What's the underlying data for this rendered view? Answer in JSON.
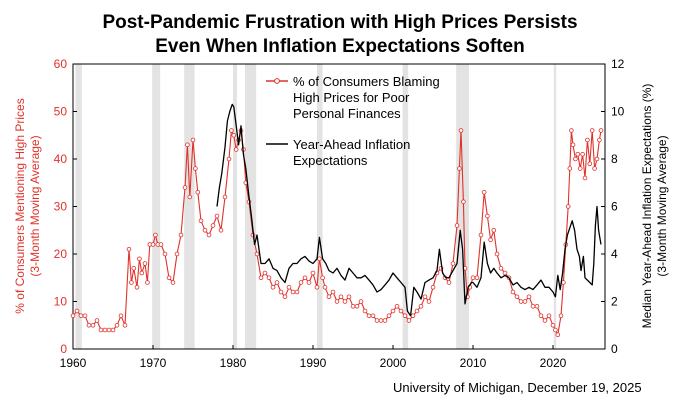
{
  "chart_data": {
    "type": "line",
    "title": "Post-Pandemic Frustration with High Prices Persists",
    "subtitle": "Even When Inflation Expectations Soften",
    "source": "University of Michigan, December 19, 2025",
    "x_ticks": [
      "1960",
      "1970",
      "1980",
      "1990",
      "2000",
      "2010",
      "2020"
    ],
    "xlim": [
      1960,
      2026.5
    ],
    "y_left": {
      "label_line1": "% of Consumers Mentioning High Prices",
      "label_line2": "(3-Month Moving Average)",
      "lim": [
        0,
        60
      ],
      "ticks": [
        "0",
        "10",
        "20",
        "30",
        "40",
        "50",
        "60"
      ]
    },
    "y_right": {
      "label_line1": "Median Year-Ahead Inflation Expectations (%)",
      "label_line2": "(3-Month Moving Average)",
      "lim": [
        0,
        12
      ],
      "ticks": [
        "0",
        "2",
        "4",
        "6",
        "8",
        "10",
        "12"
      ]
    },
    "recessions": [
      [
        1960.3,
        1961.1
      ],
      [
        1969.9,
        1970.9
      ],
      [
        1973.9,
        1975.2
      ],
      [
        1980.0,
        1980.5
      ],
      [
        1981.5,
        1982.9
      ],
      [
        1990.5,
        1991.2
      ],
      [
        2001.2,
        2001.9
      ],
      [
        2007.9,
        2009.5
      ],
      [
        2020.1,
        2020.4
      ]
    ],
    "series": [
      {
        "name": "% of Consumers Blaming High Prices for Poor Personal Finances",
        "legend_lines": [
          "% of Consumers Blaming",
          "High Prices for Poor",
          "Personal Finances"
        ],
        "axis": "left",
        "color": "#e0322b",
        "points": [
          [
            1960.0,
            7
          ],
          [
            1960.5,
            8
          ],
          [
            1961.0,
            7
          ],
          [
            1961.5,
            7
          ],
          [
            1962.0,
            5
          ],
          [
            1962.5,
            5
          ],
          [
            1963.0,
            6
          ],
          [
            1963.5,
            4
          ],
          [
            1964.0,
            4
          ],
          [
            1964.5,
            4
          ],
          [
            1965.0,
            4
          ],
          [
            1965.5,
            5
          ],
          [
            1966.0,
            7
          ],
          [
            1966.5,
            5
          ],
          [
            1967.0,
            21
          ],
          [
            1967.3,
            14
          ],
          [
            1967.6,
            17
          ],
          [
            1968.0,
            13
          ],
          [
            1968.3,
            19
          ],
          [
            1968.6,
            16
          ],
          [
            1969.0,
            18
          ],
          [
            1969.3,
            14
          ],
          [
            1969.6,
            22
          ],
          [
            1970.0,
            22
          ],
          [
            1970.3,
            24
          ],
          [
            1970.6,
            22
          ],
          [
            1971.0,
            22
          ],
          [
            1971.5,
            20
          ],
          [
            1972.0,
            15
          ],
          [
            1972.5,
            14
          ],
          [
            1973.0,
            20
          ],
          [
            1973.5,
            24
          ],
          [
            1974.0,
            34
          ],
          [
            1974.3,
            43
          ],
          [
            1974.6,
            32
          ],
          [
            1975.0,
            44
          ],
          [
            1975.3,
            38
          ],
          [
            1975.6,
            33
          ],
          [
            1976.0,
            27
          ],
          [
            1976.5,
            25
          ],
          [
            1977.0,
            24
          ],
          [
            1977.5,
            26
          ],
          [
            1978.0,
            28
          ],
          [
            1978.5,
            25
          ],
          [
            1979.0,
            32
          ],
          [
            1979.5,
            40
          ],
          [
            1979.8,
            46
          ],
          [
            1980.1,
            45
          ],
          [
            1980.4,
            42
          ],
          [
            1980.7,
            44
          ],
          [
            1981.0,
            46
          ],
          [
            1981.3,
            42
          ],
          [
            1981.6,
            35
          ],
          [
            1982.0,
            31
          ],
          [
            1982.5,
            24
          ],
          [
            1983.0,
            20
          ],
          [
            1983.5,
            15
          ],
          [
            1984.0,
            16
          ],
          [
            1984.5,
            15
          ],
          [
            1985.0,
            13
          ],
          [
            1985.5,
            14
          ],
          [
            1986.0,
            12
          ],
          [
            1986.5,
            11
          ],
          [
            1987.0,
            13
          ],
          [
            1987.5,
            12
          ],
          [
            1988.0,
            12
          ],
          [
            1988.5,
            14
          ],
          [
            1989.0,
            15
          ],
          [
            1989.5,
            14
          ],
          [
            1990.0,
            16
          ],
          [
            1990.5,
            13
          ],
          [
            1990.8,
            19
          ],
          [
            1991.2,
            15
          ],
          [
            1991.5,
            13
          ],
          [
            1992.0,
            11
          ],
          [
            1992.5,
            12
          ],
          [
            1993.0,
            10
          ],
          [
            1993.5,
            11
          ],
          [
            1994.0,
            10
          ],
          [
            1994.5,
            11
          ],
          [
            1995.0,
            9
          ],
          [
            1995.5,
            9
          ],
          [
            1996.0,
            10
          ],
          [
            1996.5,
            8
          ],
          [
            1997.0,
            7
          ],
          [
            1997.5,
            7
          ],
          [
            1998.0,
            6
          ],
          [
            1998.5,
            6
          ],
          [
            1999.0,
            6
          ],
          [
            1999.5,
            7
          ],
          [
            2000.0,
            8
          ],
          [
            2000.5,
            9
          ],
          [
            2001.0,
            8
          ],
          [
            2001.5,
            7
          ],
          [
            2002.0,
            6
          ],
          [
            2002.5,
            7
          ],
          [
            2003.0,
            8
          ],
          [
            2003.5,
            9
          ],
          [
            2004.0,
            11
          ],
          [
            2004.5,
            10
          ],
          [
            2005.0,
            13
          ],
          [
            2005.5,
            16
          ],
          [
            2006.0,
            17
          ],
          [
            2006.5,
            15
          ],
          [
            2007.0,
            14
          ],
          [
            2007.5,
            18
          ],
          [
            2008.0,
            26
          ],
          [
            2008.3,
            38
          ],
          [
            2008.5,
            46
          ],
          [
            2008.8,
            31
          ],
          [
            2009.0,
            17
          ],
          [
            2009.3,
            11
          ],
          [
            2009.6,
            13
          ],
          [
            2010.0,
            15
          ],
          [
            2010.5,
            15
          ],
          [
            2011.0,
            24
          ],
          [
            2011.4,
            33
          ],
          [
            2011.8,
            28
          ],
          [
            2012.2,
            23
          ],
          [
            2012.6,
            25
          ],
          [
            2013.0,
            20
          ],
          [
            2013.5,
            17
          ],
          [
            2014.0,
            16
          ],
          [
            2014.5,
            15
          ],
          [
            2015.0,
            12
          ],
          [
            2015.5,
            11
          ],
          [
            2016.0,
            10
          ],
          [
            2016.5,
            10
          ],
          [
            2017.0,
            11
          ],
          [
            2017.5,
            9
          ],
          [
            2018.0,
            9
          ],
          [
            2018.5,
            7
          ],
          [
            2019.0,
            6
          ],
          [
            2019.5,
            7
          ],
          [
            2020.0,
            5
          ],
          [
            2020.3,
            4
          ],
          [
            2020.6,
            3
          ],
          [
            2021.0,
            7
          ],
          [
            2021.3,
            14
          ],
          [
            2021.6,
            22
          ],
          [
            2021.9,
            30
          ],
          [
            2022.1,
            38
          ],
          [
            2022.3,
            46
          ],
          [
            2022.5,
            43
          ],
          [
            2022.8,
            40
          ],
          [
            2023.1,
            41
          ],
          [
            2023.4,
            38
          ],
          [
            2023.7,
            41
          ],
          [
            2024.0,
            36
          ],
          [
            2024.3,
            44
          ],
          [
            2024.6,
            39
          ],
          [
            2024.9,
            46
          ],
          [
            2025.2,
            38
          ],
          [
            2025.5,
            40
          ],
          [
            2025.8,
            44
          ],
          [
            2026.0,
            46
          ]
        ]
      },
      {
        "name": "Year-Ahead Inflation Expectations",
        "legend_lines": [
          "Year-Ahead Inflation",
          "Expectations"
        ],
        "axis": "right",
        "color": "#000000",
        "points": [
          [
            1978.0,
            6.0
          ],
          [
            1978.3,
            6.8
          ],
          [
            1978.6,
            7.4
          ],
          [
            1979.0,
            8.5
          ],
          [
            1979.3,
            9.6
          ],
          [
            1979.6,
            10.0
          ],
          [
            1979.9,
            10.3
          ],
          [
            1980.1,
            10.2
          ],
          [
            1980.4,
            9.4
          ],
          [
            1980.7,
            8.6
          ],
          [
            1981.0,
            9.4
          ],
          [
            1981.3,
            8.2
          ],
          [
            1981.6,
            7.6
          ],
          [
            1982.0,
            6.4
          ],
          [
            1982.3,
            5.6
          ],
          [
            1982.7,
            4.4
          ],
          [
            1983.0,
            4.8
          ],
          [
            1983.5,
            3.6
          ],
          [
            1984.0,
            3.6
          ],
          [
            1984.5,
            3.8
          ],
          [
            1985.0,
            3.4
          ],
          [
            1985.5,
            3.3
          ],
          [
            1986.0,
            3.0
          ],
          [
            1986.5,
            2.8
          ],
          [
            1987.0,
            3.4
          ],
          [
            1987.5,
            3.6
          ],
          [
            1988.0,
            3.6
          ],
          [
            1988.5,
            3.8
          ],
          [
            1989.0,
            3.9
          ],
          [
            1989.5,
            3.7
          ],
          [
            1990.0,
            3.6
          ],
          [
            1990.5,
            3.8
          ],
          [
            1990.8,
            4.7
          ],
          [
            1991.2,
            3.8
          ],
          [
            1991.6,
            3.6
          ],
          [
            1992.0,
            3.3
          ],
          [
            1992.5,
            3.2
          ],
          [
            1993.0,
            3.4
          ],
          [
            1993.5,
            3.1
          ],
          [
            1994.0,
            2.9
          ],
          [
            1994.5,
            3.4
          ],
          [
            1995.0,
            3.2
          ],
          [
            1995.5,
            3.0
          ],
          [
            1996.0,
            3.0
          ],
          [
            1996.5,
            3.1
          ],
          [
            1997.0,
            2.9
          ],
          [
            1997.5,
            2.7
          ],
          [
            1998.0,
            2.4
          ],
          [
            1998.5,
            2.5
          ],
          [
            1999.0,
            2.7
          ],
          [
            1999.5,
            2.9
          ],
          [
            2000.0,
            3.2
          ],
          [
            2000.5,
            3.0
          ],
          [
            2001.0,
            2.8
          ],
          [
            2001.5,
            2.6
          ],
          [
            2001.8,
            1.6
          ],
          [
            2002.2,
            1.4
          ],
          [
            2002.6,
            2.6
          ],
          [
            2003.0,
            2.4
          ],
          [
            2003.5,
            2.1
          ],
          [
            2004.0,
            2.8
          ],
          [
            2004.5,
            2.9
          ],
          [
            2005.0,
            3.0
          ],
          [
            2005.5,
            3.3
          ],
          [
            2005.8,
            4.2
          ],
          [
            2006.2,
            3.2
          ],
          [
            2006.6,
            3.0
          ],
          [
            2007.0,
            3.0
          ],
          [
            2007.5,
            3.3
          ],
          [
            2008.0,
            3.6
          ],
          [
            2008.4,
            5.0
          ],
          [
            2008.7,
            4.2
          ],
          [
            2009.0,
            1.9
          ],
          [
            2009.4,
            2.6
          ],
          [
            2009.8,
            2.8
          ],
          [
            2010.0,
            2.8
          ],
          [
            2010.5,
            2.6
          ],
          [
            2011.0,
            3.0
          ],
          [
            2011.4,
            4.5
          ],
          [
            2011.8,
            3.6
          ],
          [
            2012.2,
            3.2
          ],
          [
            2012.6,
            3.4
          ],
          [
            2013.0,
            3.2
          ],
          [
            2013.5,
            3.0
          ],
          [
            2014.0,
            3.1
          ],
          [
            2014.5,
            3.0
          ],
          [
            2015.0,
            2.7
          ],
          [
            2015.5,
            2.8
          ],
          [
            2016.0,
            2.6
          ],
          [
            2016.5,
            2.5
          ],
          [
            2017.0,
            2.6
          ],
          [
            2017.5,
            2.5
          ],
          [
            2018.0,
            2.7
          ],
          [
            2018.5,
            2.9
          ],
          [
            2019.0,
            2.6
          ],
          [
            2019.5,
            2.6
          ],
          [
            2020.0,
            2.4
          ],
          [
            2020.3,
            2.2
          ],
          [
            2020.6,
            3.1
          ],
          [
            2020.9,
            2.5
          ],
          [
            2021.2,
            3.2
          ],
          [
            2021.5,
            4.2
          ],
          [
            2021.8,
            4.8
          ],
          [
            2022.1,
            5.1
          ],
          [
            2022.4,
            5.4
          ],
          [
            2022.7,
            5.0
          ],
          [
            2023.0,
            4.2
          ],
          [
            2023.3,
            3.9
          ],
          [
            2023.5,
            3.3
          ],
          [
            2023.8,
            3.9
          ],
          [
            2024.0,
            3.0
          ],
          [
            2024.3,
            2.9
          ],
          [
            2024.6,
            2.8
          ],
          [
            2024.9,
            2.7
          ],
          [
            2025.1,
            3.6
          ],
          [
            2025.3,
            5.2
          ],
          [
            2025.5,
            6.0
          ],
          [
            2025.7,
            5.0
          ],
          [
            2025.9,
            4.6
          ],
          [
            2026.0,
            4.4
          ]
        ]
      }
    ]
  }
}
